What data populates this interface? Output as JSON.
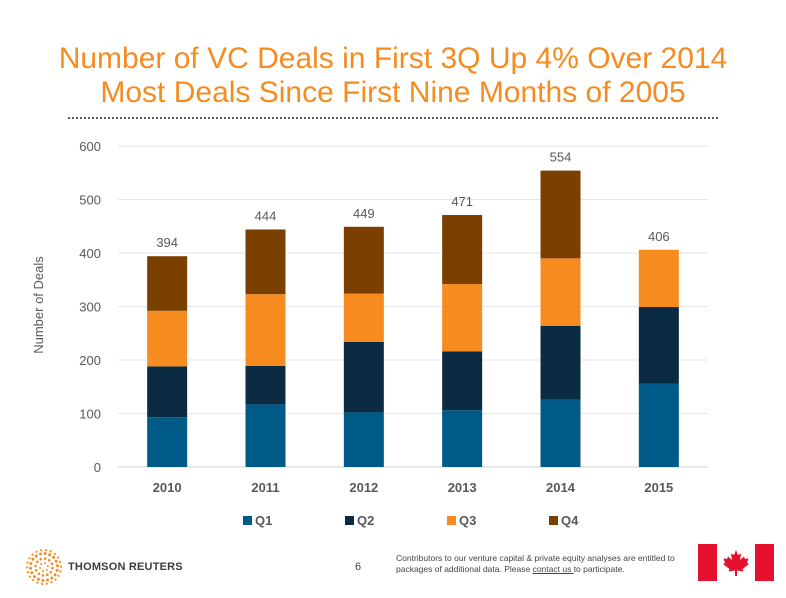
{
  "title": {
    "line1": "Number of VC Deals in First 3Q Up 4% Over 2014",
    "line2": "Most Deals Since First Nine Months of 2005"
  },
  "chart_data": {
    "type": "bar",
    "stacked": true,
    "categories": [
      "2010",
      "2011",
      "2012",
      "2013",
      "2014",
      "2015"
    ],
    "series": [
      {
        "name": "Q1",
        "color": "#005a87",
        "values": [
          93,
          117,
          102,
          106,
          126,
          156
        ]
      },
      {
        "name": "Q2",
        "color": "#0b2b43",
        "values": [
          95,
          72,
          132,
          110,
          138,
          143
        ]
      },
      {
        "name": "Q3",
        "color": "#f68b1f",
        "values": [
          104,
          134,
          90,
          126,
          126,
          107
        ]
      },
      {
        "name": "Q4",
        "color": "#7b3f00",
        "values": [
          102,
          121,
          125,
          129,
          164,
          0
        ]
      }
    ],
    "totals": [
      394,
      444,
      449,
      471,
      554,
      406
    ],
    "ylabel": "Number of Deals",
    "xlabel": "",
    "ylim": [
      0,
      600
    ],
    "yticks": [
      0,
      100,
      200,
      300,
      400,
      500,
      600
    ],
    "legend": "bottom",
    "grid": true
  },
  "footer": {
    "brand": "THOMSON REUTERS",
    "page_number": "6",
    "note_before_link": "Contributors to our venture capital & private equity analyses are entitled to packages of additional data. Please ",
    "link_text": "contact us ",
    "note_after_link": "to participate."
  }
}
